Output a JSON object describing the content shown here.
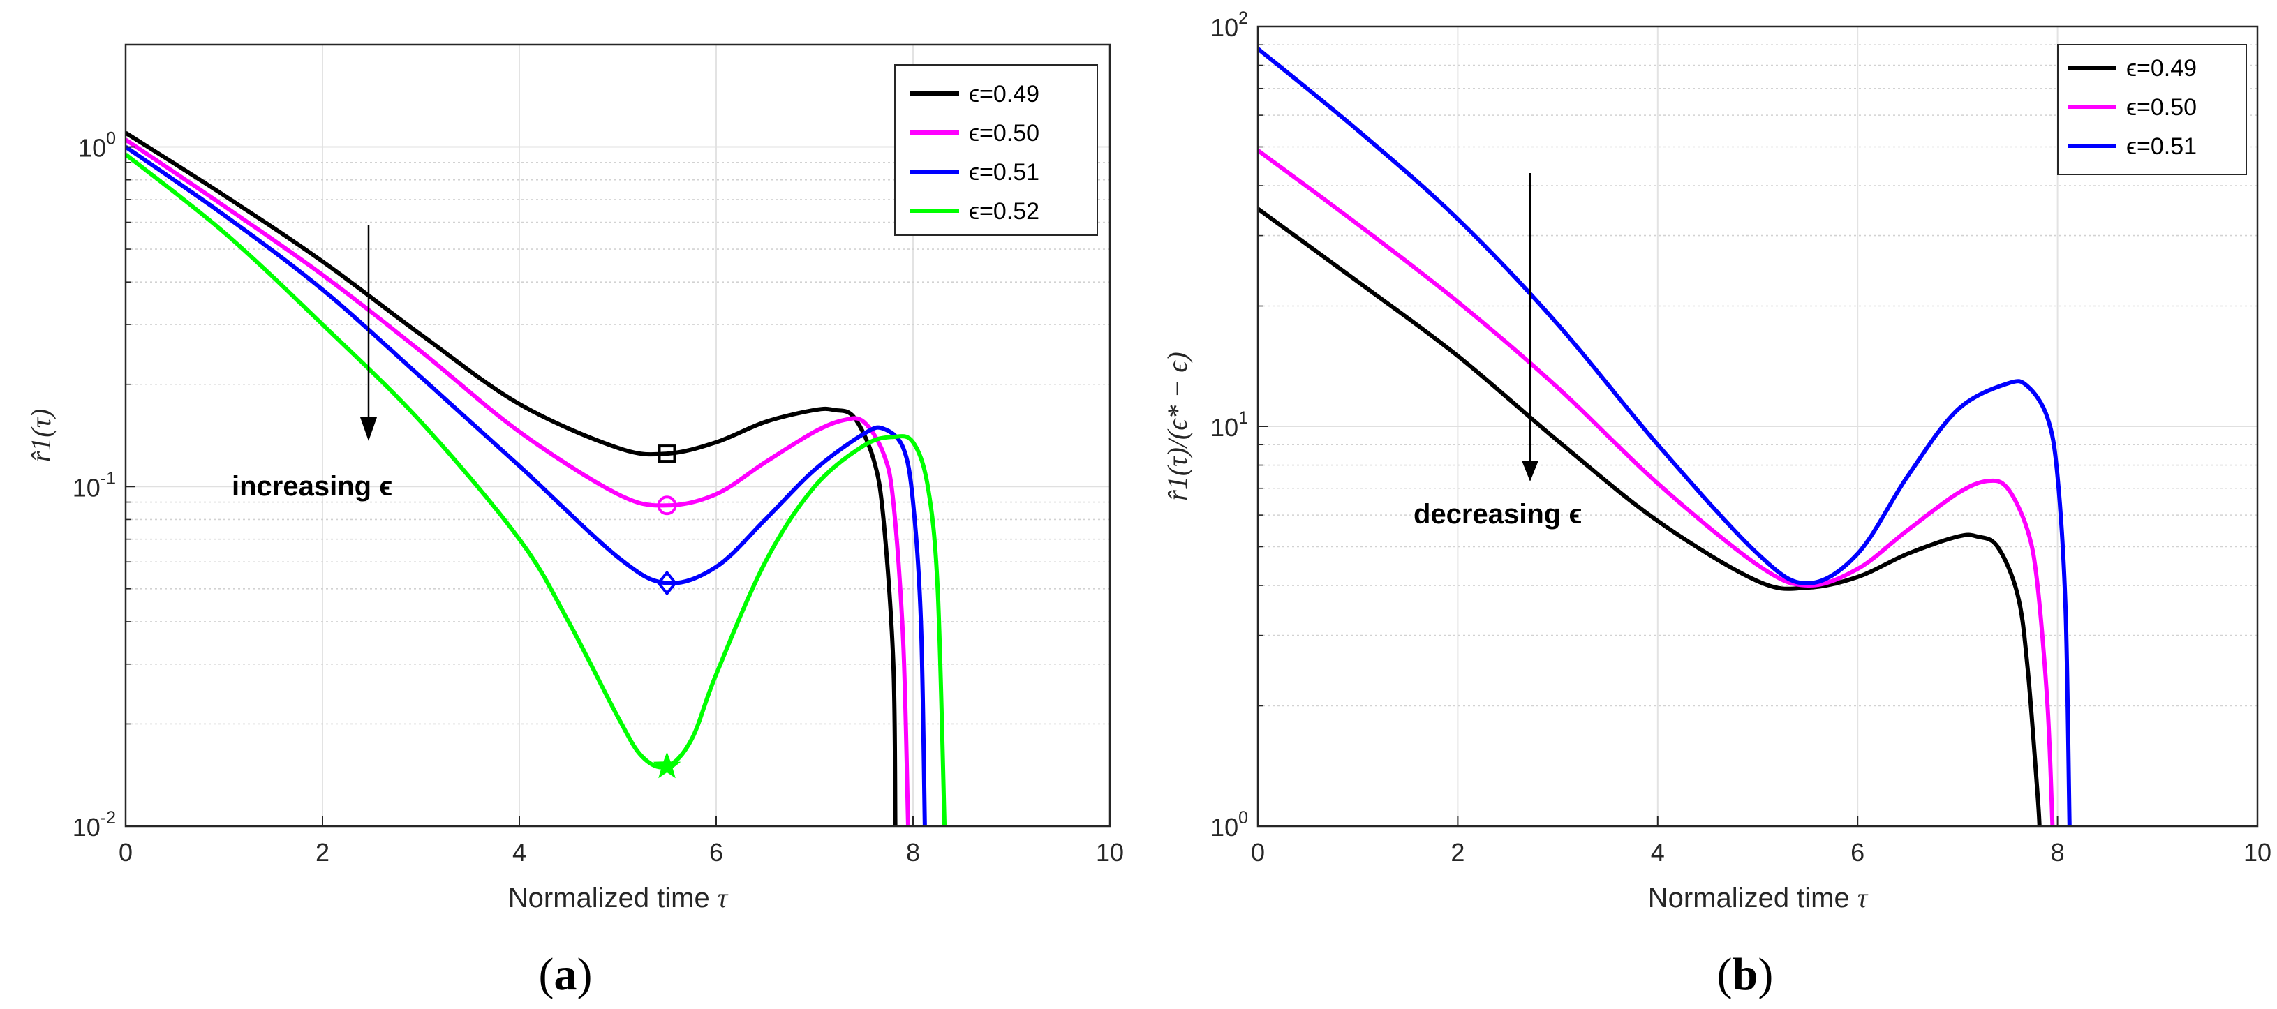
{
  "chart_data": [
    {
      "type": "line",
      "panel_label": "(a)",
      "xlabel": "Normalized time",
      "xlabel_symbol": "τ",
      "ylabel": "r̂1(τ)",
      "yscale": "log",
      "xlim": [
        0,
        10
      ],
      "ylim": [
        0.01,
        2
      ],
      "x_ticks": [
        "0",
        "2",
        "4",
        "6",
        "8",
        "10"
      ],
      "y_ticks": [
        {
          "base": "10",
          "exp": "-2"
        },
        {
          "base": "10",
          "exp": "-1"
        },
        {
          "base": "10",
          "exp": "0"
        }
      ],
      "grid": true,
      "legend_position": "top-right",
      "annotation": "increasing ϵ",
      "series": [
        {
          "name": "ϵ=0.49",
          "color": "#000000",
          "marker": "square",
          "marker_at": [
            5.5,
            0.125
          ],
          "x": [
            0,
            1,
            2,
            3,
            4,
            5,
            5.5,
            6,
            6.5,
            7,
            7.2,
            7.4,
            7.6,
            7.7,
            7.8,
            7.82
          ],
          "y": [
            1.1,
            0.72,
            0.46,
            0.28,
            0.175,
            0.13,
            0.125,
            0.135,
            0.155,
            0.168,
            0.168,
            0.16,
            0.12,
            0.08,
            0.03,
            0.01
          ]
        },
        {
          "name": "ϵ=0.50",
          "color": "#ff00ff",
          "marker": "circle",
          "marker_at": [
            5.5,
            0.088
          ],
          "x": [
            0,
            1,
            2,
            3,
            4,
            5,
            5.5,
            6,
            6.5,
            7,
            7.3,
            7.5,
            7.7,
            7.8,
            7.9,
            7.95
          ],
          "y": [
            1.05,
            0.67,
            0.42,
            0.25,
            0.145,
            0.095,
            0.088,
            0.095,
            0.118,
            0.145,
            0.157,
            0.155,
            0.125,
            0.09,
            0.035,
            0.01
          ]
        },
        {
          "name": "ϵ=0.51",
          "color": "#0000ff",
          "marker": "diamond",
          "marker_at": [
            5.5,
            0.052
          ],
          "x": [
            0,
            1,
            2,
            3,
            4,
            5,
            5.5,
            6,
            6.5,
            7,
            7.5,
            7.7,
            7.9,
            8.0,
            8.08,
            8.12
          ],
          "y": [
            1.0,
            0.63,
            0.38,
            0.21,
            0.115,
            0.062,
            0.052,
            0.058,
            0.08,
            0.112,
            0.143,
            0.148,
            0.13,
            0.09,
            0.04,
            0.01
          ]
        },
        {
          "name": "ϵ=0.52",
          "color": "#00ff00",
          "marker": "star",
          "marker_at": [
            5.5,
            0.015
          ],
          "x": [
            0,
            1,
            2,
            3,
            4,
            4.5,
            5,
            5.25,
            5.5,
            5.75,
            6,
            6.5,
            7,
            7.5,
            7.8,
            8.0,
            8.15,
            8.25,
            8.32
          ],
          "y": [
            0.95,
            0.56,
            0.3,
            0.155,
            0.07,
            0.04,
            0.021,
            0.016,
            0.015,
            0.018,
            0.028,
            0.06,
            0.1,
            0.132,
            0.14,
            0.135,
            0.1,
            0.05,
            0.01
          ]
        }
      ]
    },
    {
      "type": "line",
      "panel_label": "(b)",
      "xlabel": "Normalized time",
      "xlabel_symbol": "τ",
      "ylabel": "r̂1(τ)/(ϵ* − ϵ)",
      "yscale": "log",
      "xlim": [
        0,
        10
      ],
      "ylim": [
        1,
        100
      ],
      "x_ticks": [
        "0",
        "2",
        "4",
        "6",
        "8",
        "10"
      ],
      "y_ticks": [
        {
          "base": "10",
          "exp": "0"
        },
        {
          "base": "10",
          "exp": "1"
        },
        {
          "base": "10",
          "exp": "2"
        }
      ],
      "grid": true,
      "legend_position": "top-right",
      "annotation": "decreasing ϵ",
      "series": [
        {
          "name": "ϵ=0.49",
          "color": "#000000",
          "x": [
            0,
            1,
            2,
            3,
            4,
            5,
            5.5,
            6,
            6.5,
            7,
            7.2,
            7.4,
            7.6,
            7.7,
            7.8,
            7.82
          ],
          "y": [
            35,
            23,
            15,
            9.2,
            5.8,
            4.1,
            3.95,
            4.2,
            4.8,
            5.3,
            5.3,
            5.0,
            3.8,
            2.5,
            1.2,
            1.0
          ]
        },
        {
          "name": "ϵ=0.50",
          "color": "#ff00ff",
          "x": [
            0,
            1,
            2,
            3,
            4,
            5,
            5.5,
            6,
            6.5,
            7,
            7.3,
            7.5,
            7.7,
            7.8,
            7.9,
            7.95
          ],
          "y": [
            49,
            32,
            20.5,
            12.5,
            7.2,
            4.5,
            4.0,
            4.4,
            5.5,
            6.8,
            7.3,
            7.0,
            5.5,
            4.0,
            2.0,
            1.0
          ]
        },
        {
          "name": "ϵ=0.51",
          "color": "#0000ff",
          "x": [
            0,
            1,
            2,
            3,
            4,
            5,
            5.5,
            6,
            6.5,
            7,
            7.5,
            7.7,
            7.9,
            8.0,
            8.08,
            8.12
          ],
          "y": [
            88,
            55,
            33,
            18,
            9.0,
            4.8,
            4.05,
            4.8,
            7.5,
            11,
            12.8,
            12.6,
            10.5,
            7.5,
            3.5,
            1.0
          ]
        }
      ]
    }
  ]
}
